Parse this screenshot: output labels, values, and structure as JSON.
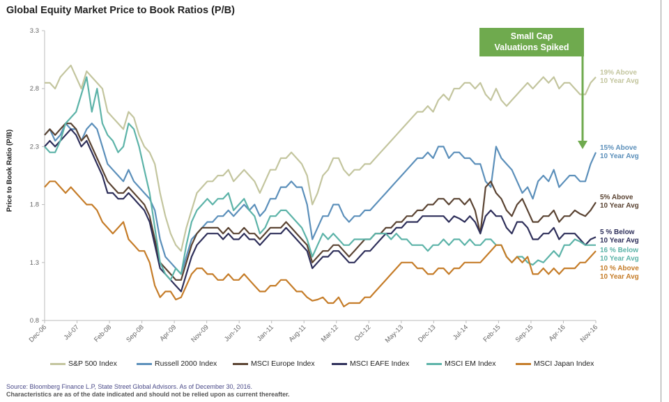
{
  "chart_data": {
    "type": "line",
    "title": "Global Equity Market Price to Book Ratios (P/B)",
    "ylabel": "Price to Book Ratio (P/B)",
    "ylim": [
      0.8,
      3.3
    ],
    "yticks": [
      "0.8",
      "1.3",
      "1.8",
      "2.3",
      "2.8",
      "3.3"
    ],
    "x_tick_labels": [
      "Dec-06",
      "Jul-07",
      "Feb-08",
      "Sep-08",
      "Apr-09",
      "Nov-09",
      "Jun-10",
      "Jan-11",
      "Aug-11",
      "Mar-12",
      "Oct-12",
      "May-13",
      "Dec-13",
      "Jul-14",
      "Feb-15",
      "Sep-15",
      "Apr-16",
      "Nov-16"
    ],
    "x_start": "Dec-06",
    "grid": false,
    "legend_position": "bottom",
    "series": [
      {
        "name": "S&P 500 Index",
        "color": "#c3c59e",
        "end_label": [
          "19% Above",
          "10 Year Avg"
        ],
        "values": [
          2.85,
          2.85,
          2.8,
          2.9,
          2.95,
          3.0,
          2.9,
          2.8,
          2.95,
          2.9,
          2.85,
          2.8,
          2.6,
          2.55,
          2.5,
          2.45,
          2.6,
          2.55,
          2.4,
          2.3,
          2.25,
          2.15,
          1.9,
          1.7,
          1.55,
          1.45,
          1.4,
          1.6,
          1.75,
          1.9,
          1.95,
          2.0,
          2.0,
          2.05,
          2.05,
          2.1,
          2.0,
          2.05,
          2.1,
          2.05,
          2.0,
          1.9,
          2.0,
          2.1,
          2.1,
          2.2,
          2.2,
          2.25,
          2.2,
          2.15,
          2.05,
          1.8,
          1.9,
          2.05,
          2.1,
          2.2,
          2.2,
          2.1,
          2.05,
          2.1,
          2.1,
          2.15,
          2.15,
          2.2,
          2.25,
          2.3,
          2.35,
          2.4,
          2.45,
          2.5,
          2.55,
          2.6,
          2.6,
          2.65,
          2.6,
          2.7,
          2.75,
          2.7,
          2.8,
          2.8,
          2.85,
          2.85,
          2.8,
          2.85,
          2.75,
          2.7,
          2.8,
          2.7,
          2.65,
          2.7,
          2.75,
          2.8,
          2.85,
          2.8,
          2.85,
          2.9,
          2.85,
          2.9,
          2.8,
          2.85,
          2.85,
          2.8,
          2.75,
          2.75,
          2.85,
          2.9
        ]
      },
      {
        "name": "Russell 2000 Index",
        "color": "#5b8fba",
        "end_label": [
          "15% Above",
          "10 Year Avg"
        ],
        "values": [
          2.4,
          2.45,
          2.35,
          2.4,
          2.5,
          2.45,
          2.45,
          2.35,
          2.45,
          2.5,
          2.45,
          2.3,
          2.15,
          2.1,
          2.05,
          2.0,
          2.1,
          2.0,
          1.95,
          1.9,
          1.85,
          1.75,
          1.5,
          1.35,
          1.3,
          1.25,
          1.2,
          1.35,
          1.5,
          1.55,
          1.6,
          1.65,
          1.65,
          1.7,
          1.7,
          1.75,
          1.7,
          1.75,
          1.8,
          1.75,
          1.8,
          1.7,
          1.75,
          1.85,
          1.85,
          1.95,
          1.95,
          2.0,
          1.95,
          1.95,
          1.8,
          1.5,
          1.6,
          1.7,
          1.7,
          1.8,
          1.8,
          1.7,
          1.65,
          1.7,
          1.7,
          1.75,
          1.75,
          1.8,
          1.85,
          1.9,
          1.95,
          2.0,
          2.05,
          2.1,
          2.15,
          2.2,
          2.2,
          2.25,
          2.2,
          2.3,
          2.3,
          2.2,
          2.25,
          2.25,
          2.2,
          2.2,
          2.15,
          2.15,
          2.0,
          1.95,
          2.3,
          2.2,
          2.15,
          2.1,
          2.0,
          1.9,
          1.95,
          1.85,
          2.0,
          2.05,
          2.0,
          2.1,
          1.95,
          2.0,
          2.05,
          2.05,
          2.0,
          2.0,
          2.15,
          2.25
        ]
      },
      {
        "name": "MSCI Europe Index",
        "color": "#5a4332",
        "end_label": [
          "5% Above",
          "10 Year Avg"
        ],
        "values": [
          2.4,
          2.45,
          2.4,
          2.45,
          2.5,
          2.5,
          2.45,
          2.35,
          2.4,
          2.3,
          2.2,
          2.1,
          2.0,
          1.95,
          1.9,
          1.9,
          1.95,
          1.9,
          1.85,
          1.8,
          1.7,
          1.5,
          1.3,
          1.25,
          1.2,
          1.15,
          1.15,
          1.3,
          1.45,
          1.55,
          1.6,
          1.6,
          1.6,
          1.6,
          1.55,
          1.6,
          1.55,
          1.55,
          1.6,
          1.55,
          1.55,
          1.5,
          1.55,
          1.6,
          1.6,
          1.6,
          1.65,
          1.6,
          1.55,
          1.5,
          1.45,
          1.3,
          1.35,
          1.4,
          1.4,
          1.45,
          1.45,
          1.4,
          1.35,
          1.4,
          1.45,
          1.5,
          1.5,
          1.55,
          1.55,
          1.6,
          1.6,
          1.65,
          1.65,
          1.7,
          1.7,
          1.75,
          1.75,
          1.8,
          1.8,
          1.85,
          1.85,
          1.8,
          1.85,
          1.85,
          1.8,
          1.85,
          1.75,
          1.55,
          1.95,
          2.0,
          1.9,
          1.85,
          1.75,
          1.7,
          1.8,
          1.85,
          1.75,
          1.65,
          1.65,
          1.7,
          1.7,
          1.75,
          1.65,
          1.7,
          1.7,
          1.75,
          1.72,
          1.7,
          1.75,
          1.82
        ]
      },
      {
        "name": "MSCI EAFE Index",
        "color": "#2e2f5a",
        "end_label": [
          "5 % Below",
          "10 Year Avg"
        ],
        "values": [
          2.3,
          2.35,
          2.3,
          2.35,
          2.4,
          2.45,
          2.4,
          2.3,
          2.35,
          2.25,
          2.15,
          2.05,
          1.9,
          1.9,
          1.85,
          1.85,
          1.9,
          1.85,
          1.8,
          1.75,
          1.65,
          1.45,
          1.25,
          1.2,
          1.15,
          1.1,
          1.05,
          1.2,
          1.35,
          1.45,
          1.5,
          1.55,
          1.55,
          1.55,
          1.5,
          1.55,
          1.5,
          1.5,
          1.55,
          1.5,
          1.5,
          1.45,
          1.5,
          1.55,
          1.55,
          1.55,
          1.6,
          1.55,
          1.5,
          1.45,
          1.4,
          1.25,
          1.3,
          1.35,
          1.35,
          1.4,
          1.4,
          1.35,
          1.3,
          1.3,
          1.35,
          1.4,
          1.4,
          1.45,
          1.5,
          1.55,
          1.55,
          1.6,
          1.6,
          1.65,
          1.65,
          1.65,
          1.7,
          1.7,
          1.7,
          1.7,
          1.7,
          1.65,
          1.7,
          1.68,
          1.65,
          1.7,
          1.65,
          1.55,
          1.7,
          1.75,
          1.7,
          1.7,
          1.6,
          1.55,
          1.65,
          1.65,
          1.6,
          1.5,
          1.5,
          1.55,
          1.55,
          1.6,
          1.5,
          1.55,
          1.55,
          1.55,
          1.5,
          1.45,
          1.5,
          1.52
        ]
      },
      {
        "name": "MSCI EM Index",
        "color": "#5cb3a8",
        "end_label": [
          "16 % Below",
          "10 Year Avg"
        ],
        "values": [
          2.3,
          2.25,
          2.25,
          2.35,
          2.5,
          2.55,
          2.6,
          2.75,
          2.9,
          2.6,
          2.8,
          2.5,
          2.4,
          2.35,
          2.25,
          2.3,
          2.5,
          2.45,
          2.3,
          2.1,
          1.9,
          1.6,
          1.3,
          1.2,
          1.15,
          1.25,
          1.2,
          1.45,
          1.65,
          1.75,
          1.8,
          1.85,
          1.8,
          1.85,
          1.85,
          1.9,
          1.75,
          1.8,
          1.85,
          1.75,
          1.7,
          1.55,
          1.6,
          1.7,
          1.7,
          1.75,
          1.75,
          1.7,
          1.65,
          1.6,
          1.5,
          1.35,
          1.45,
          1.55,
          1.5,
          1.55,
          1.5,
          1.45,
          1.45,
          1.5,
          1.5,
          1.5,
          1.5,
          1.55,
          1.55,
          1.55,
          1.5,
          1.55,
          1.5,
          1.5,
          1.45,
          1.45,
          1.45,
          1.4,
          1.45,
          1.45,
          1.5,
          1.45,
          1.5,
          1.5,
          1.45,
          1.5,
          1.45,
          1.45,
          1.5,
          1.5,
          1.45,
          1.45,
          1.35,
          1.3,
          1.35,
          1.35,
          1.3,
          1.28,
          1.32,
          1.3,
          1.35,
          1.4,
          1.35,
          1.45,
          1.45,
          1.5,
          1.48,
          1.45,
          1.45,
          1.45
        ]
      },
      {
        "name": "MSCI Japan Index",
        "color": "#c57c28",
        "end_label": [
          "10 % Above",
          "10 Year Avg"
        ],
        "values": [
          1.95,
          2.0,
          2.0,
          1.95,
          1.9,
          1.95,
          1.9,
          1.85,
          1.8,
          1.8,
          1.75,
          1.65,
          1.6,
          1.55,
          1.6,
          1.65,
          1.5,
          1.45,
          1.4,
          1.4,
          1.3,
          1.1,
          1.0,
          1.05,
          1.05,
          0.98,
          1.0,
          1.1,
          1.2,
          1.25,
          1.25,
          1.2,
          1.2,
          1.15,
          1.15,
          1.2,
          1.15,
          1.15,
          1.2,
          1.15,
          1.1,
          1.05,
          1.05,
          1.1,
          1.1,
          1.15,
          1.15,
          1.1,
          1.05,
          1.05,
          1.0,
          0.97,
          0.98,
          1.0,
          0.95,
          0.95,
          1.0,
          0.92,
          0.95,
          0.95,
          0.95,
          1.0,
          1.0,
          1.05,
          1.1,
          1.15,
          1.2,
          1.25,
          1.3,
          1.3,
          1.3,
          1.25,
          1.25,
          1.2,
          1.2,
          1.25,
          1.25,
          1.2,
          1.25,
          1.25,
          1.3,
          1.3,
          1.3,
          1.3,
          1.35,
          1.4,
          1.45,
          1.45,
          1.35,
          1.3,
          1.35,
          1.3,
          1.35,
          1.2,
          1.2,
          1.25,
          1.2,
          1.25,
          1.2,
          1.25,
          1.25,
          1.25,
          1.3,
          1.3,
          1.35,
          1.4
        ]
      }
    ],
    "annotations": [
      "Small Cap",
      "Valuations Spiked"
    ]
  },
  "footnote": {
    "line1": "Source: Bloomberg Finance L.P, State Street Global Advisors. As of December 30, 2016.",
    "line2": "Characteristics are as of the date indicated and should not be relied upon as current thereafter."
  }
}
